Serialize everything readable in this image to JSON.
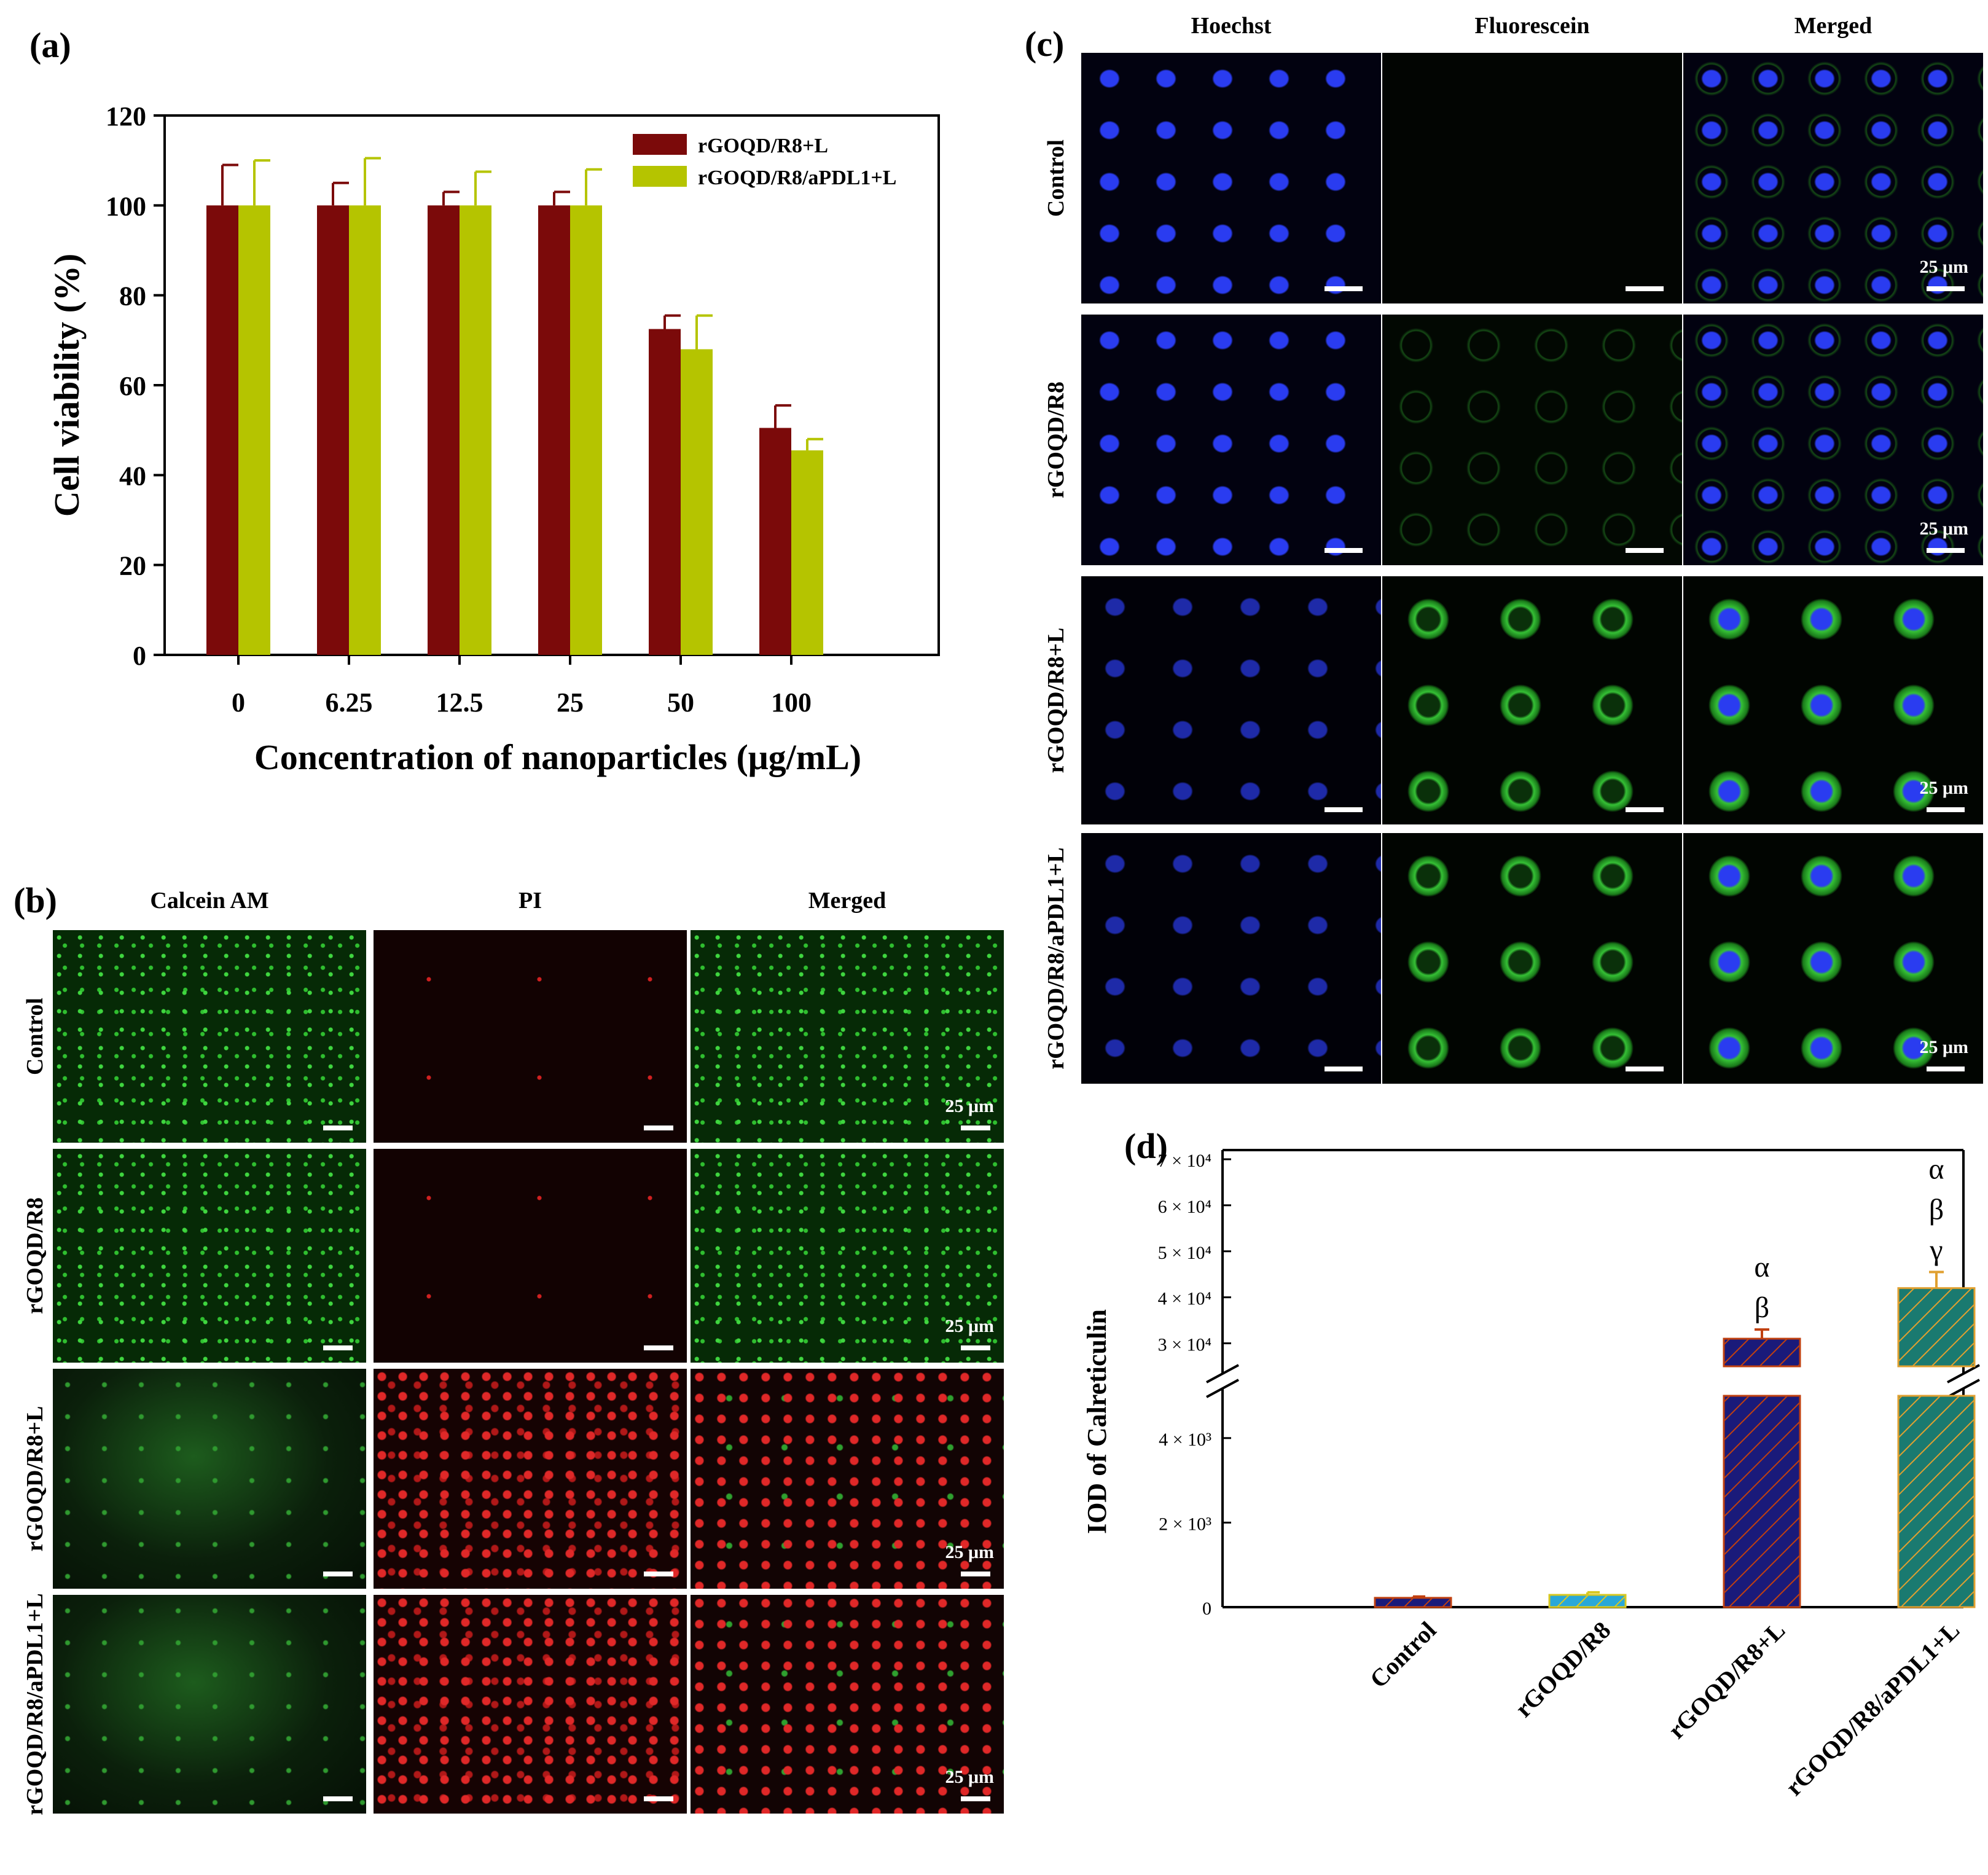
{
  "panel_a": {
    "label": "(a)",
    "chart_data": {
      "type": "bar",
      "categories": [
        "0",
        "6.25",
        "12.5",
        "25",
        "50",
        "100"
      ],
      "series": [
        {
          "name": "rGOQD/R8+L",
          "color": "#7b0a0a",
          "values": [
            100,
            100,
            100,
            100,
            72.5,
            50.5
          ],
          "errors": [
            9,
            5,
            3,
            3,
            3,
            5
          ]
        },
        {
          "name": "rGOQD/R8/aPDL1+L",
          "color": "#b5c400",
          "values": [
            100,
            100,
            100,
            100,
            68,
            45.5
          ],
          "errors": [
            10,
            10.5,
            7.5,
            8,
            7.5,
            2.5
          ]
        }
      ],
      "xlabel": "Concentration of nanoparticles (μg/mL)",
      "ylabel": "Cell viability (%)",
      "ylim": [
        0,
        120
      ],
      "yticks": [
        "0",
        "20",
        "40",
        "60",
        "80",
        "100",
        "120"
      ],
      "legend_position": "top-right",
      "grid": false
    }
  },
  "panel_b": {
    "label": "(b)",
    "columns": [
      "Calcein AM",
      "PI",
      "Merged"
    ],
    "rows": [
      "Control",
      "rGOQD/R8",
      "rGOQD/R8+L",
      "rGOQD/R8/aPDL1+L"
    ],
    "scale_label": "25 μm"
  },
  "panel_c": {
    "label": "(c)",
    "columns": [
      "Hoechst",
      "Fluorescein",
      "Merged"
    ],
    "rows": [
      "Control",
      "rGOQD/R8",
      "rGOQD/R8+L",
      "rGOQD/R8/aPDL1+L"
    ],
    "scale_label": "25 μm"
  },
  "panel_d": {
    "label": "(d)",
    "chart_data": {
      "type": "bar",
      "categories": [
        "Control",
        "rGOQD/R8",
        "rGOQD/R8+L",
        "rGOQD/R8/aPDL1+L"
      ],
      "values": [
        220,
        290,
        31000,
        42000
      ],
      "errors": [
        30,
        60,
        2000,
        3500
      ],
      "colors": [
        "#1a1a7a",
        "#29a8d8",
        "#1a1a7a",
        "#1a7a70"
      ],
      "hatch_colors": [
        "#c04010",
        "#d8c820",
        "#c04010",
        "#e0a030"
      ],
      "ylabel": "IOD of Calreticulin",
      "broken_axis": true,
      "lower_ylim": [
        0,
        5000
      ],
      "upper_ylim": [
        25000,
        72000
      ],
      "lower_ticks": [
        "0",
        "2 × 10³",
        "4 × 10³"
      ],
      "upper_ticks": [
        "3 × 10⁴",
        "4 × 10⁴",
        "5 × 10⁴",
        "6 × 10⁴",
        "7 × 10⁴"
      ],
      "annotations": [
        {
          "category": "rGOQD/R8+L",
          "text": [
            "α",
            "β"
          ]
        },
        {
          "category": "rGOQD/R8/aPDL1+L",
          "text": [
            "α",
            "β",
            "γ"
          ]
        }
      ]
    }
  }
}
